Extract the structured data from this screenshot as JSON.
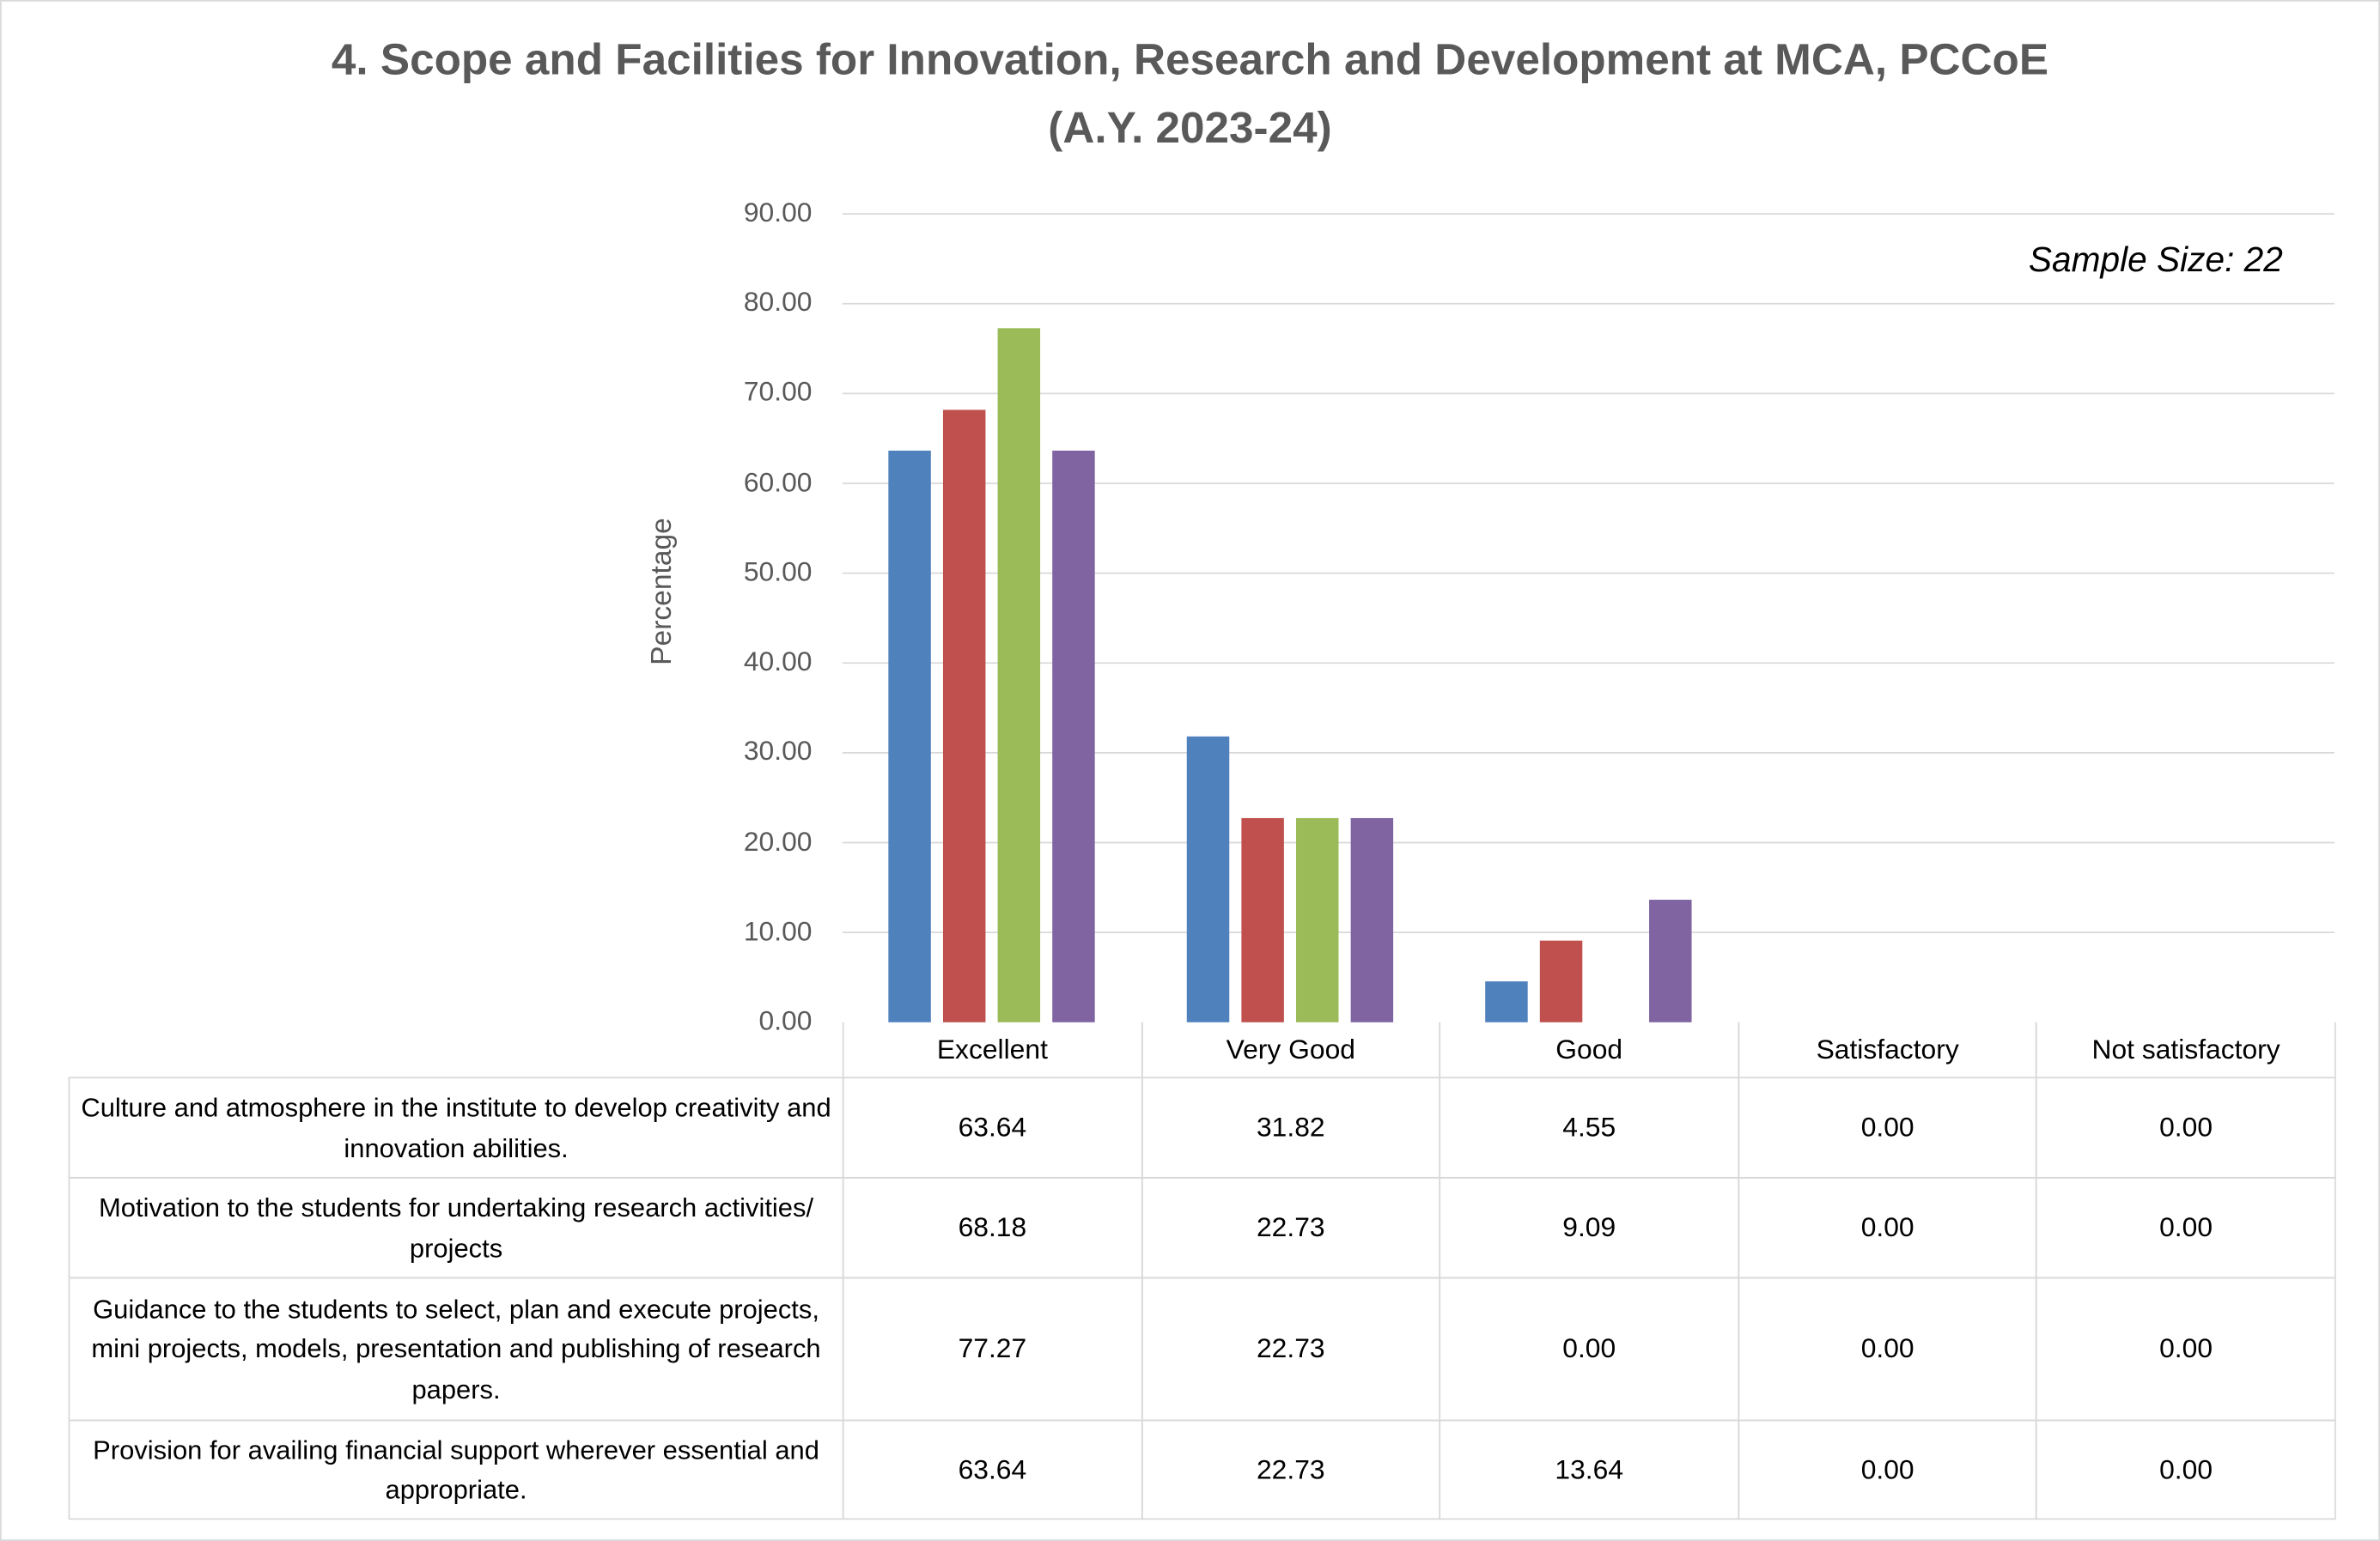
{
  "chart_data": {
    "type": "bar",
    "title": "4. Scope and Facilities for Innovation, Research and Development at MCA, PCCoE",
    "subtitle": "(A.Y. 2023-24)",
    "annotation": "Sample Size: 22",
    "xlabel": "",
    "ylabel": "Percentage",
    "ylim": [
      0,
      90
    ],
    "yticks": [
      "0.00",
      "10.00",
      "20.00",
      "30.00",
      "40.00",
      "50.00",
      "60.00",
      "70.00",
      "80.00",
      "90.00"
    ],
    "grid": true,
    "legend": "data table below chart (no legend keys)",
    "categories": [
      "Excellent",
      "Very Good",
      "Good",
      "Satisfactory",
      "Not satisfactory"
    ],
    "series": [
      {
        "name": "Culture and atmosphere in the institute to develop creativity and innovation abilities.",
        "color": "#4F81BD",
        "values": [
          63.64,
          31.82,
          4.55,
          0.0,
          0.0
        ],
        "labels": [
          "63.64",
          "31.82",
          "4.55",
          "0.00",
          "0.00"
        ]
      },
      {
        "name": "Motivation to the students for undertaking research activities/ projects",
        "color": "#C0504D",
        "values": [
          68.18,
          22.73,
          9.09,
          0.0,
          0.0
        ],
        "labels": [
          "68.18",
          "22.73",
          "9.09",
          "0.00",
          "0.00"
        ]
      },
      {
        "name": "Guidance to the students to select, plan and execute projects, mini projects, models, presentation and publishing of research papers.",
        "color": "#9BBB59",
        "values": [
          77.27,
          22.73,
          0.0,
          0.0,
          0.0
        ],
        "labels": [
          "77.27",
          "22.73",
          "0.00",
          "0.00",
          "0.00"
        ]
      },
      {
        "name": "Provision for availing financial support wherever essential and appropriate.",
        "color": "#8064A2",
        "values": [
          63.64,
          22.73,
          13.64,
          0.0,
          0.0
        ],
        "labels": [
          "63.64",
          "22.73",
          "13.64",
          "0.00",
          "0.00"
        ]
      }
    ]
  }
}
